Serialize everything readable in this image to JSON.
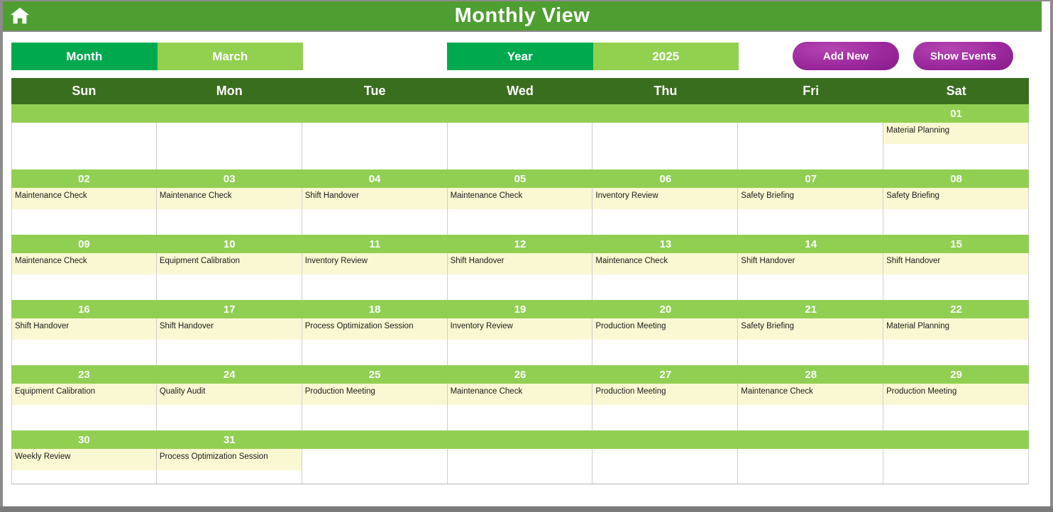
{
  "header": {
    "title": "Monthly View"
  },
  "controls": {
    "month_label": "Month",
    "month_value": "March",
    "year_label": "Year",
    "year_value": "2025",
    "add_new_label": "Add New",
    "show_events_label": "Show Events"
  },
  "colors": {
    "top_bar_green": "#4f9e31",
    "emerald_green": "#00a94e",
    "light_green": "#92d050",
    "date_strip_green": "#90cf52",
    "day_header_dark_green": "#3a6e1f",
    "event_yellow": "#faf8d2",
    "button_purple": "#9c2a9e",
    "frame_gray": "#8c8c8c"
  },
  "calendar": {
    "day_headers": [
      "Sun",
      "Mon",
      "Tue",
      "Wed",
      "Thu",
      "Fri",
      "Sat"
    ],
    "weeks": [
      {
        "cells": [
          {
            "date": "",
            "event": ""
          },
          {
            "date": "",
            "event": ""
          },
          {
            "date": "",
            "event": ""
          },
          {
            "date": "",
            "event": ""
          },
          {
            "date": "",
            "event": ""
          },
          {
            "date": "",
            "event": ""
          },
          {
            "date": "01",
            "event": "Material Planning"
          }
        ]
      },
      {
        "cells": [
          {
            "date": "02",
            "event": "Maintenance Check"
          },
          {
            "date": "03",
            "event": "Maintenance Check"
          },
          {
            "date": "04",
            "event": "Shift Handover"
          },
          {
            "date": "05",
            "event": "Maintenance Check"
          },
          {
            "date": "06",
            "event": "Inventory Review"
          },
          {
            "date": "07",
            "event": "Safety Briefing"
          },
          {
            "date": "08",
            "event": "Safety Briefing"
          }
        ]
      },
      {
        "cells": [
          {
            "date": "09",
            "event": "Maintenance Check"
          },
          {
            "date": "10",
            "event": "Equipment Calibration"
          },
          {
            "date": "11",
            "event": "Inventory Review"
          },
          {
            "date": "12",
            "event": "Shift Handover"
          },
          {
            "date": "13",
            "event": "Maintenance Check"
          },
          {
            "date": "14",
            "event": "Shift Handover"
          },
          {
            "date": "15",
            "event": "Shift Handover"
          }
        ]
      },
      {
        "cells": [
          {
            "date": "16",
            "event": "Shift Handover"
          },
          {
            "date": "17",
            "event": "Shift Handover"
          },
          {
            "date": "18",
            "event": "Process Optimization Session"
          },
          {
            "date": "19",
            "event": "Inventory Review"
          },
          {
            "date": "20",
            "event": "Production Meeting"
          },
          {
            "date": "21",
            "event": "Safety Briefing"
          },
          {
            "date": "22",
            "event": "Material Planning"
          }
        ]
      },
      {
        "cells": [
          {
            "date": "23",
            "event": "Equipment Calibration"
          },
          {
            "date": "24",
            "event": "Quality Audit"
          },
          {
            "date": "25",
            "event": "Production Meeting"
          },
          {
            "date": "26",
            "event": "Maintenance Check"
          },
          {
            "date": "27",
            "event": "Production Meeting"
          },
          {
            "date": "28",
            "event": "Maintenance Check"
          },
          {
            "date": "29",
            "event": "Production Meeting"
          }
        ]
      },
      {
        "cells": [
          {
            "date": "30",
            "event": "Weekly Review"
          },
          {
            "date": "31",
            "event": "Process Optimization Session"
          },
          {
            "date": "",
            "event": ""
          },
          {
            "date": "",
            "event": ""
          },
          {
            "date": "",
            "event": ""
          },
          {
            "date": "",
            "event": ""
          },
          {
            "date": "",
            "event": ""
          }
        ]
      }
    ]
  }
}
